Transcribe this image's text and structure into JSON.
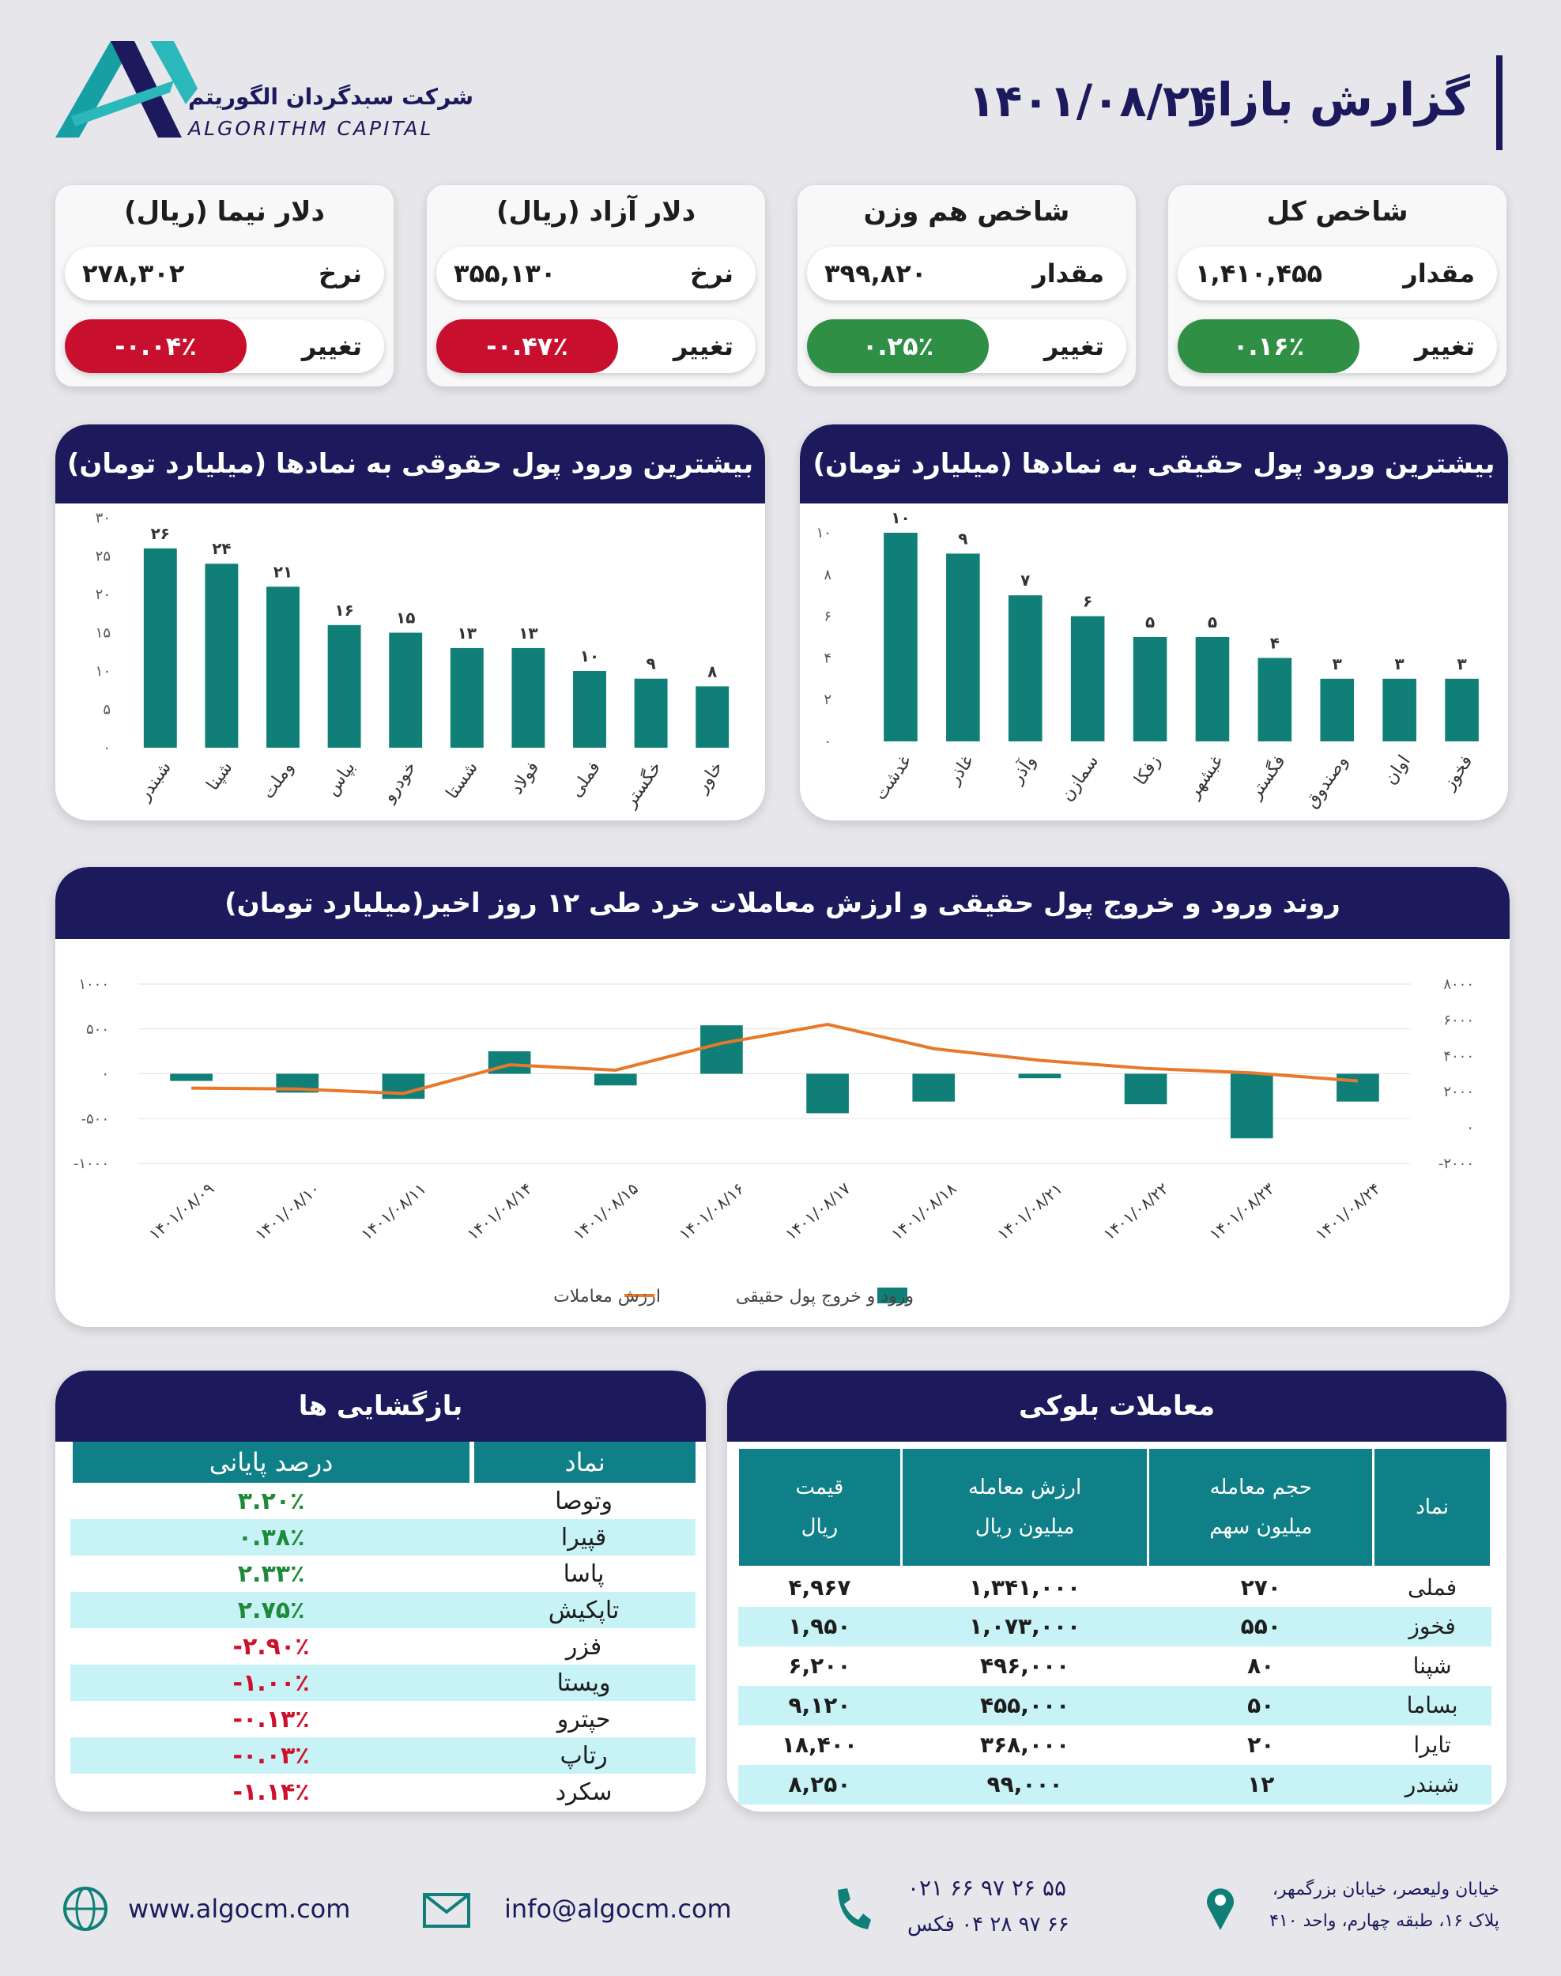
{
  "header": {
    "title": "گزارش بازار",
    "date": "۱۴۰۱/۰۸/۲۴",
    "company": "شرکت سبدگردان الگوریتم",
    "company_en": "ALGORITHM CAPITAL"
  },
  "cards": [
    {
      "title": "شاخص کل",
      "rows": [
        {
          "label": "مقدار",
          "value": "۱,۴۱۰,۴۵۵"
        },
        {
          "label": "تغییر",
          "value": "۰.۱۶٪",
          "color": "#2f8f45"
        }
      ]
    },
    {
      "title": "شاخص هم وزن",
      "rows": [
        {
          "label": "مقدار",
          "value": "۳۹۹,۸۲۰"
        },
        {
          "label": "تغییر",
          "value": "۰.۲۵٪",
          "color": "#2f8f45"
        }
      ]
    },
    {
      "title": "دلار آزاد (ریال)",
      "rows": [
        {
          "label": "نرخ",
          "value": "۳۵۵,۱۳۰"
        },
        {
          "label": "تغییر",
          "value": "-۰.۴۷٪",
          "color": "#c8102e"
        }
      ]
    },
    {
      "title": "دلار نیما (ریال)",
      "rows": [
        {
          "label": "نرخ",
          "value": "۲۷۸,۳۰۲"
        },
        {
          "label": "تغییر",
          "value": "-۰.۰۴٪",
          "color": "#c8102e"
        }
      ]
    }
  ],
  "chart_data": [
    {
      "type": "bar",
      "title": "بیشترین ورود پول حقیقی به نمادها (میلیارد تومان)",
      "color": "#0f7f78",
      "categories": [
        "غدشت",
        "غاذر",
        "وآذر",
        "سمازن",
        "زفکا",
        "غبشهر",
        "فگستر",
        "وصندوق",
        "اوان",
        "فخوز"
      ],
      "values": [
        10,
        9,
        7,
        6,
        5,
        5,
        4,
        3,
        3,
        3
      ],
      "value_labels": [
        "۱۰",
        "۹",
        "۷",
        "۶",
        "۵",
        "۵",
        "۴",
        "۳",
        "۳",
        "۳"
      ],
      "ylim": [
        0,
        10
      ],
      "yticks": [
        {
          "value": 0,
          "label": "۰"
        },
        {
          "value": 2,
          "label": "۲"
        },
        {
          "value": 4,
          "label": "۴"
        },
        {
          "value": 6,
          "label": "۶"
        },
        {
          "value": 8,
          "label": "۸"
        },
        {
          "value": 10,
          "label": "۱۰"
        }
      ],
      "grid": false
    },
    {
      "type": "bar",
      "title": "بیشترین ورود پول حقوقی به نمادها (میلیارد تومان)",
      "color": "#0f7f78",
      "categories": [
        "شبندر",
        "شپنا",
        "وملت",
        "بپاس",
        "خودرو",
        "شستا",
        "فولاد",
        "فملی",
        "خگستر",
        "خاور"
      ],
      "values": [
        26,
        24,
        21,
        16,
        15,
        13,
        13,
        10,
        9,
        8
      ],
      "value_labels": [
        "۲۶",
        "۲۴",
        "۲۱",
        "۱۶",
        "۱۵",
        "۱۳",
        "۱۳",
        "۱۰",
        "۹",
        "۸"
      ],
      "ylim": [
        0,
        30
      ],
      "yticks": [
        {
          "value": 0,
          "label": "۰"
        },
        {
          "value": 5,
          "label": "۵"
        },
        {
          "value": 10,
          "label": "۱۰"
        },
        {
          "value": 15,
          "label": "۱۵"
        },
        {
          "value": 20,
          "label": "۲۰"
        },
        {
          "value": 25,
          "label": "۲۵"
        },
        {
          "value": 30,
          "label": "۳۰"
        }
      ],
      "grid": false
    },
    {
      "type": "combo",
      "title": "روند ورود و خروج پول حقیقی و ارزش معاملات خرد طی ۱۲ روز اخیر(میلیارد تومان)",
      "x": [
        "۱۴۰۱/۰۸/۰۹",
        "۱۴۰۱/۰۸/۱۰",
        "۱۴۰۱/۰۸/۱۱",
        "۱۴۰۱/۰۸/۱۴",
        "۱۴۰۱/۰۸/۱۵",
        "۱۴۰۱/۰۸/۱۶",
        "۱۴۰۱/۰۸/۱۷",
        "۱۴۰۱/۰۸/۱۸",
        "۱۴۰۱/۰۸/۲۱",
        "۱۴۰۱/۰۸/۲۲",
        "۱۴۰۱/۰۸/۲۳",
        "۱۴۰۱/۰۸/۲۴"
      ],
      "series": [
        {
          "name": "ورود و خروج پول حقیقی",
          "type": "bar",
          "color": "#0f7f78",
          "values": [
            -80,
            -210,
            -280,
            250,
            -130,
            540,
            -440,
            -310,
            -50,
            -340,
            -720,
            -310
          ]
        },
        {
          "name": "ارزش معاملات",
          "type": "line",
          "axis": "y2",
          "color": "#e8782a",
          "values": [
            2200,
            2150,
            1900,
            3500,
            3200,
            4700,
            5750,
            4400,
            3750,
            3300,
            3050,
            2600
          ]
        }
      ],
      "ylim": [
        -1000,
        1000
      ],
      "yticks": [
        {
          "value": -1000,
          "label": "-۱۰۰۰"
        },
        {
          "value": -500,
          "label": "-۵۰۰"
        },
        {
          "value": 0,
          "label": "۰"
        },
        {
          "value": 500,
          "label": "۵۰۰"
        },
        {
          "value": 1000,
          "label": "۱۰۰۰"
        }
      ],
      "y2lim": [
        -2000,
        8000
      ],
      "y2ticks": [
        {
          "value": -2000,
          "label": "-۲۰۰۰"
        },
        {
          "value": 0,
          "label": "۰"
        },
        {
          "value": 2000,
          "label": "۲۰۰۰"
        },
        {
          "value": 4000,
          "label": "۴۰۰۰"
        },
        {
          "value": 6000,
          "label": "۶۰۰۰"
        },
        {
          "value": 8000,
          "label": "۸۰۰۰"
        }
      ],
      "grid": true
    }
  ],
  "block_trades": {
    "title": "معاملات بلوکی",
    "columns": [
      [
        "نماد"
      ],
      [
        "حجم معامله",
        "میلیون سهم"
      ],
      [
        "ارزش معامله",
        "میلیون ریال"
      ],
      [
        "قیمت",
        "ریال"
      ]
    ],
    "rows": [
      [
        "فملی",
        "۲۷۰",
        "۱,۳۴۱,۰۰۰",
        "۴,۹۶۷"
      ],
      [
        "فخوز",
        "۵۵۰",
        "۱,۰۷۳,۰۰۰",
        "۱,۹۵۰"
      ],
      [
        "شپنا",
        "۸۰",
        "۴۹۶,۰۰۰",
        "۶,۲۰۰"
      ],
      [
        "بساما",
        "۵۰",
        "۴۵۵,۰۰۰",
        "۹,۱۲۰"
      ],
      [
        "تایرا",
        "۲۰",
        "۳۶۸,۰۰۰",
        "۱۸,۴۰۰"
      ],
      [
        "شبندر",
        "۱۲",
        "۹۹,۰۰۰",
        "۸,۲۵۰"
      ]
    ]
  },
  "openings": {
    "title": "بازگشایی ها",
    "columns": [
      "نماد",
      "درصد پایانی"
    ],
    "rows": [
      [
        "وتوصا",
        "۳.۲۰٪"
      ],
      [
        "قپیرا",
        "۰.۳۸٪"
      ],
      [
        "پاسا",
        "۲.۳۳٪"
      ],
      [
        "تاپکیش",
        "۲.۷۵٪"
      ],
      [
        "فزر",
        "-۲.۹۰٪"
      ],
      [
        "ویستا",
        "-۱.۰۰٪"
      ],
      [
        "حپترو",
        "-۰.۱۳٪"
      ],
      [
        "رتاپ",
        "-۰.۰۳٪"
      ],
      [
        "سکرد",
        "-۱.۱۴٪"
      ]
    ]
  },
  "footer": {
    "website": "www.algocm.com",
    "email": "info@algocm.com",
    "phone": "۰۲۱ ۶۶ ۹۷ ۲۶ ۵۵",
    "fax": "۶۶ ۹۷ ۲۸ ۰۴ فکس",
    "address_1": "خیابان ولیعصر، خیابان بزرگمهر،",
    "address_2": "پلاک ۱۶، طبقه چهارم، واحد ۴۱۰"
  }
}
